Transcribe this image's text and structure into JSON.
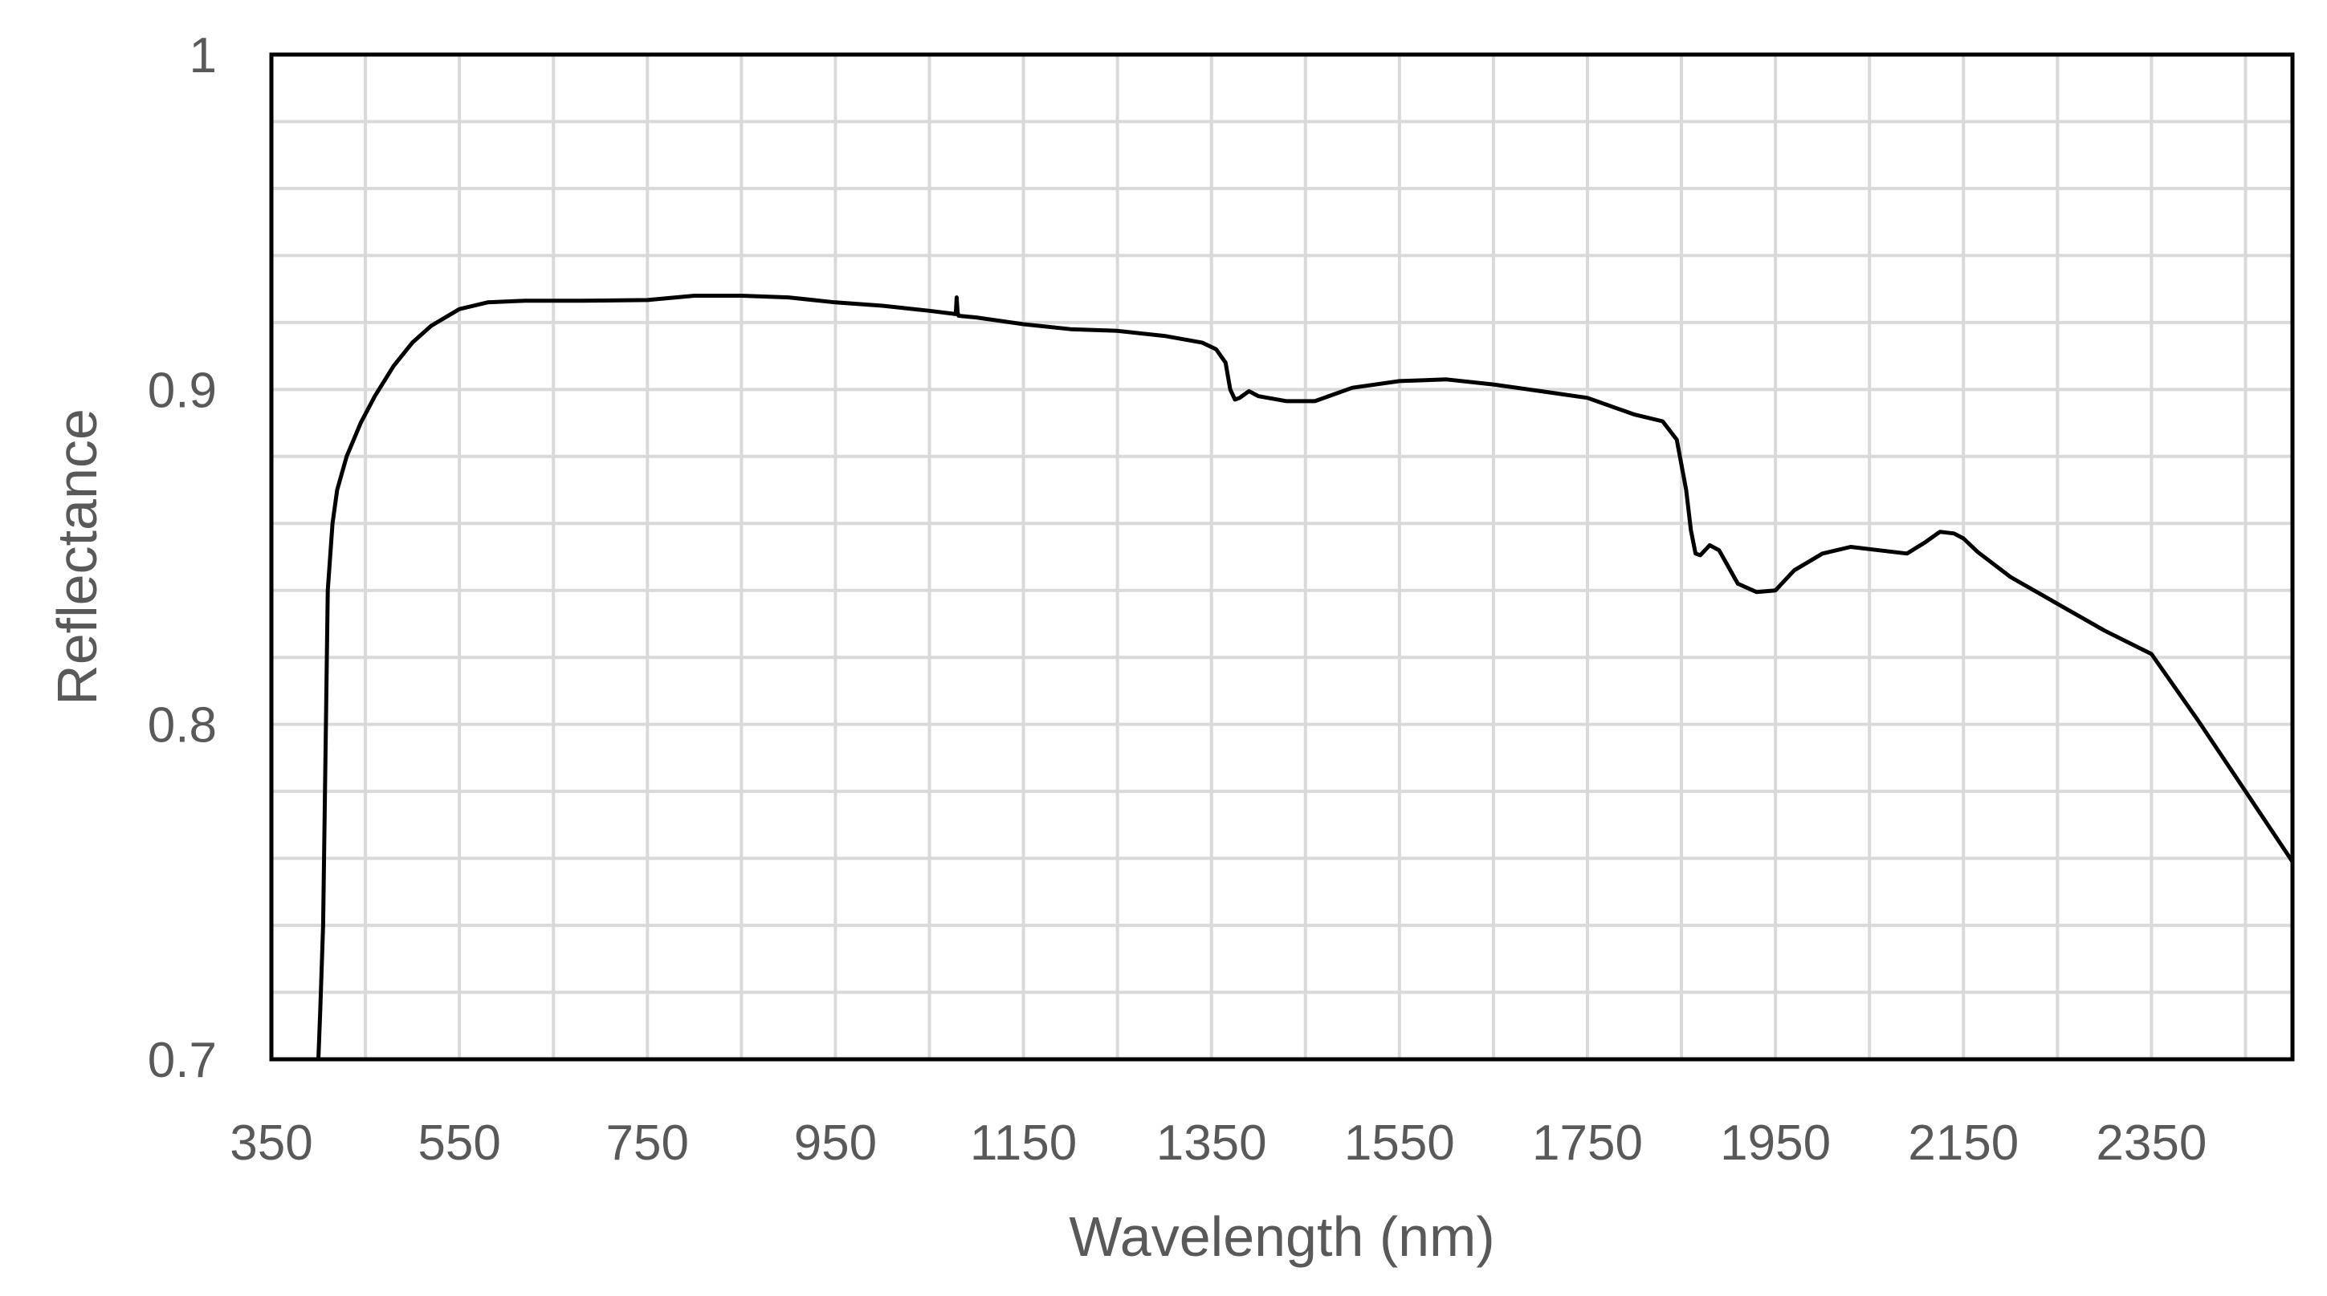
{
  "chart_data": {
    "type": "line",
    "title": "",
    "xlabel": "Wavelength (nm)",
    "ylabel": "Reflectance",
    "xlim": [
      350,
      2500
    ],
    "ylim": [
      0.7,
      1.0
    ],
    "x_ticks": [
      350,
      550,
      750,
      950,
      1150,
      1350,
      1550,
      1750,
      1950,
      2150,
      2350
    ],
    "x_tick_labels": [
      "350",
      "550",
      "750",
      "950",
      "1150",
      "1350",
      "1550",
      "1750",
      "1950",
      "2150",
      "2350"
    ],
    "y_ticks": [
      0.7,
      0.8,
      0.9,
      1.0
    ],
    "y_tick_labels": [
      "0.7",
      "0.8",
      "0.9",
      "1"
    ],
    "x_minor_step": 100,
    "y_minor_step": 0.02,
    "grid": true,
    "legend": "none",
    "line_color": "#000000",
    "grid_color": "#d9d9d9",
    "series": [
      {
        "x": [
          400,
          402,
          405,
          408,
          410,
          415,
          420,
          430,
          445,
          460,
          480,
          500,
          520,
          550,
          580,
          620,
          680,
          750,
          800,
          850,
          900,
          950,
          1000,
          1050,
          1078,
          1079,
          1080,
          1081,
          1100,
          1150,
          1200,
          1250,
          1300,
          1340,
          1355,
          1365,
          1370,
          1375,
          1380,
          1390,
          1400,
          1430,
          1460,
          1500,
          1550,
          1600,
          1650,
          1700,
          1750,
          1780,
          1800,
          1830,
          1845,
          1855,
          1860,
          1865,
          1870,
          1880,
          1890,
          1900,
          1910,
          1930,
          1950,
          1970,
          2000,
          2030,
          2060,
          2090,
          2110,
          2125,
          2140,
          2150,
          2165,
          2200,
          2250,
          2300,
          2350,
          2400,
          2450,
          2500
        ],
        "y": [
          0.7,
          0.715,
          0.74,
          0.8,
          0.84,
          0.86,
          0.87,
          0.88,
          0.89,
          0.898,
          0.907,
          0.914,
          0.919,
          0.924,
          0.926,
          0.9265,
          0.9265,
          0.9267,
          0.928,
          0.928,
          0.9275,
          0.926,
          0.925,
          0.9235,
          0.9225,
          0.9275,
          0.923,
          0.922,
          0.9215,
          0.9195,
          0.918,
          0.9175,
          0.916,
          0.914,
          0.912,
          0.908,
          0.9,
          0.897,
          0.8975,
          0.8995,
          0.898,
          0.8965,
          0.8965,
          0.9005,
          0.9025,
          0.903,
          0.9015,
          0.8995,
          0.8975,
          0.8945,
          0.8925,
          0.8905,
          0.885,
          0.87,
          0.858,
          0.851,
          0.8505,
          0.8535,
          0.852,
          0.847,
          0.842,
          0.8395,
          0.84,
          0.846,
          0.851,
          0.853,
          0.852,
          0.851,
          0.8545,
          0.8575,
          0.857,
          0.8555,
          0.8515,
          0.844,
          0.836,
          0.828,
          0.821,
          0.801,
          0.78,
          0.759
        ]
      }
    ]
  }
}
